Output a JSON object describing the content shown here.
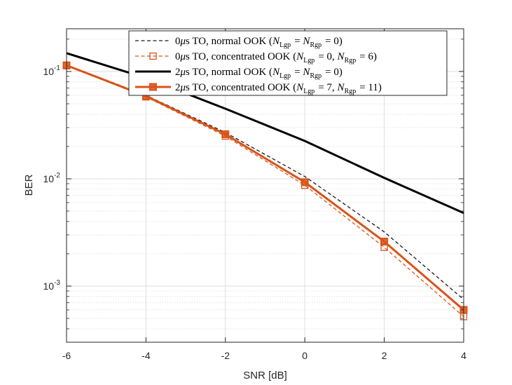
{
  "chart_data": {
    "type": "line",
    "title": "",
    "xlabel": "SNR [dB]",
    "ylabel": "BER",
    "yscale": "log",
    "xlim": [
      -6,
      4
    ],
    "ylim": [
      0.0003,
      0.25
    ],
    "grid": true,
    "legend_position": "top-right",
    "x": [
      -6,
      -4,
      -2,
      0,
      2,
      4
    ],
    "x_tick_labels": [
      "-6",
      "-4",
      "-2",
      "0",
      "2",
      "4"
    ],
    "y_ticks": [
      {
        "value": 0.1,
        "base": "10",
        "exp": "-1"
      },
      {
        "value": 0.01,
        "base": "10",
        "exp": "-2"
      },
      {
        "value": 0.001,
        "base": "10",
        "exp": "-3"
      }
    ],
    "series": [
      {
        "name": "0μs TO, normal OOK (N_Lgp = N_Rgp = 0)",
        "color": "#1a1a1a",
        "dash": "dashed",
        "marker": "none",
        "width": "thin",
        "values": [
          0.115,
          0.06,
          0.027,
          0.0105,
          0.0032,
          0.00075
        ]
      },
      {
        "name": "0μs TO, concentrated OOK (N_Lgp = 0, N_Rgp = 6)",
        "color": "#d95319",
        "dash": "dashed",
        "marker": "open-square",
        "width": "thin",
        "values": [
          0.113,
          0.058,
          0.025,
          0.0087,
          0.0023,
          0.00052
        ]
      },
      {
        "name": "2μs TO, normal OOK (N_Lgp = N_Rgp = 0)",
        "color": "#000000",
        "dash": "solid",
        "marker": "none",
        "width": "thick",
        "values": [
          0.148,
          0.087,
          0.045,
          0.0225,
          0.0102,
          0.0048
        ]
      },
      {
        "name": "2μs TO, concentrated OOK (N_Lgp = 7, N_Rgp = 11)",
        "color": "#d95319",
        "dash": "solid",
        "marker": "filled-square",
        "width": "thick",
        "values": [
          0.114,
          0.059,
          0.026,
          0.0093,
          0.0026,
          0.0006
        ]
      }
    ],
    "legend": [
      {
        "pre": "0",
        "mu": "μ",
        "mid": "s TO, normal OOK (",
        "expr": [
          {
            "t": "N",
            "sub": "Lgp"
          },
          {
            "t": " = "
          },
          {
            "t": "N",
            "sub": "Rgp"
          },
          {
            "t": " = 0)"
          }
        ]
      },
      {
        "pre": "0",
        "mu": "μ",
        "mid": "s TO, concentrated OOK (",
        "expr": [
          {
            "t": "N",
            "sub": "Lgp"
          },
          {
            "t": " = 0, "
          },
          {
            "t": "N",
            "sub": "Rgp"
          },
          {
            "t": " = 6)"
          }
        ]
      },
      {
        "pre": "2",
        "mu": "μ",
        "mid": "s TO, normal OOK (",
        "expr": [
          {
            "t": "N",
            "sub": "Lgp"
          },
          {
            "t": " = "
          },
          {
            "t": "N",
            "sub": "Rgp"
          },
          {
            "t": " = 0)"
          }
        ]
      },
      {
        "pre": "2",
        "mu": "μ",
        "mid": "s TO, concentrated OOK (",
        "expr": [
          {
            "t": "N",
            "sub": "Lgp"
          },
          {
            "t": " = 7, "
          },
          {
            "t": "N",
            "sub": "Rgp"
          },
          {
            "t": " = 11)"
          }
        ]
      }
    ]
  }
}
